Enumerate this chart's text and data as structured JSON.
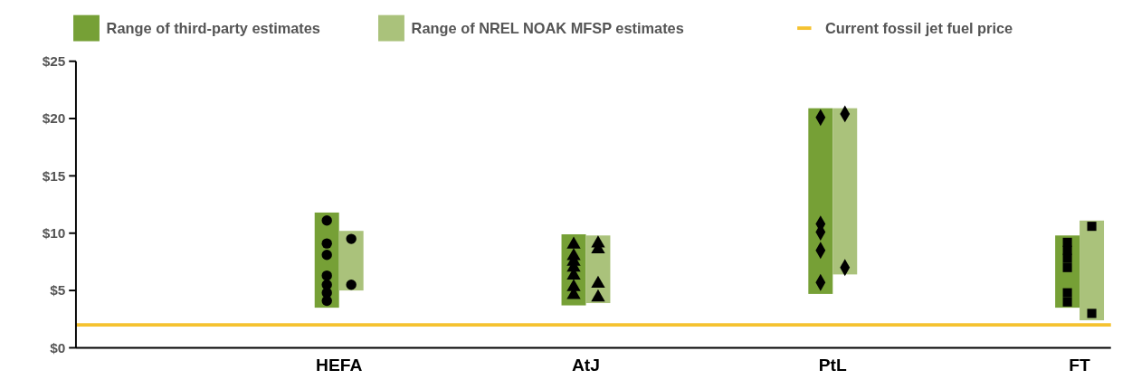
{
  "chart_data": {
    "type": "bar",
    "categories": [
      "HEFA",
      "AtJ",
      "PtL",
      "FT"
    ],
    "series": [
      {
        "name": "Range of third-party estimates",
        "color": "#76a036",
        "base": [
          3.5,
          3.7,
          4.7,
          3.5
        ],
        "values": [
          8.3,
          6.2,
          16.2,
          6.3
        ]
      },
      {
        "name": "Range of NREL NOAK MFSP estimates",
        "color": "#aac27b",
        "base": [
          5.0,
          3.9,
          6.4,
          2.4
        ],
        "values": [
          5.2,
          5.9,
          14.5,
          8.7
        ]
      },
      {
        "type": "scatter",
        "color": "#000000",
        "marker": "circle",
        "x": [
          "HEFA",
          "HEFA",
          "HEFA",
          "HEFA",
          "HEFA",
          "HEFA",
          "HEFA"
        ],
        "values": [
          11.1,
          9.1,
          8.1,
          6.3,
          5.5,
          4.8,
          4.1
        ]
      },
      {
        "type": "scatter",
        "color": "#000000",
        "marker": "circle",
        "x": [
          "HEFA",
          "HEFA"
        ],
        "values": [
          9.5,
          5.5
        ]
      },
      {
        "type": "scatter",
        "color": "#000000",
        "marker": "triangle",
        "x": [
          "AtJ",
          "AtJ",
          "AtJ",
          "AtJ",
          "AtJ",
          "AtJ",
          "AtJ"
        ],
        "values": [
          9.0,
          8.0,
          7.5,
          7.0,
          6.3,
          5.3,
          4.6
        ]
      },
      {
        "type": "scatter",
        "color": "#000000",
        "marker": "triangle",
        "x": [
          "AtJ",
          "AtJ",
          "AtJ",
          "AtJ"
        ],
        "values": [
          9.1,
          8.6,
          5.6,
          4.4
        ]
      },
      {
        "type": "scatter",
        "color": "#000000",
        "marker": "diamond",
        "x": [
          "PtL",
          "PtL",
          "PtL",
          "PtL",
          "PtL"
        ],
        "values": [
          20.1,
          10.8,
          10.1,
          8.5,
          5.7
        ]
      },
      {
        "type": "scatter",
        "color": "#000000",
        "marker": "diamond",
        "x": [
          "PtL",
          "PtL"
        ],
        "values": [
          20.4,
          7.0
        ]
      },
      {
        "type": "scatter",
        "color": "#000000",
        "marker": "square",
        "x": [
          "FT",
          "FT",
          "FT",
          "FT",
          "FT",
          "FT"
        ],
        "values": [
          9.2,
          8.5,
          7.8,
          7.0,
          4.8,
          4.0
        ]
      },
      {
        "type": "scatter",
        "color": "#000000",
        "marker": "square",
        "x": [
          "FT",
          "FT"
        ],
        "values": [
          10.6,
          3.0
        ]
      }
    ],
    "ref_lines": [
      {
        "axis": "y",
        "value": 2,
        "label": "Current fossil jet fuel price",
        "color": "#f5c230"
      }
    ],
    "ylim": [
      0,
      25
    ],
    "yticks": [
      {
        "value": 0,
        "label": "$0"
      },
      {
        "value": 5,
        "label": "$5"
      },
      {
        "value": 10,
        "label": "$10"
      },
      {
        "value": 15,
        "label": "$15"
      },
      {
        "value": 20,
        "label": "$20"
      },
      {
        "value": 25,
        "label": "$25"
      }
    ],
    "legend": "top"
  }
}
